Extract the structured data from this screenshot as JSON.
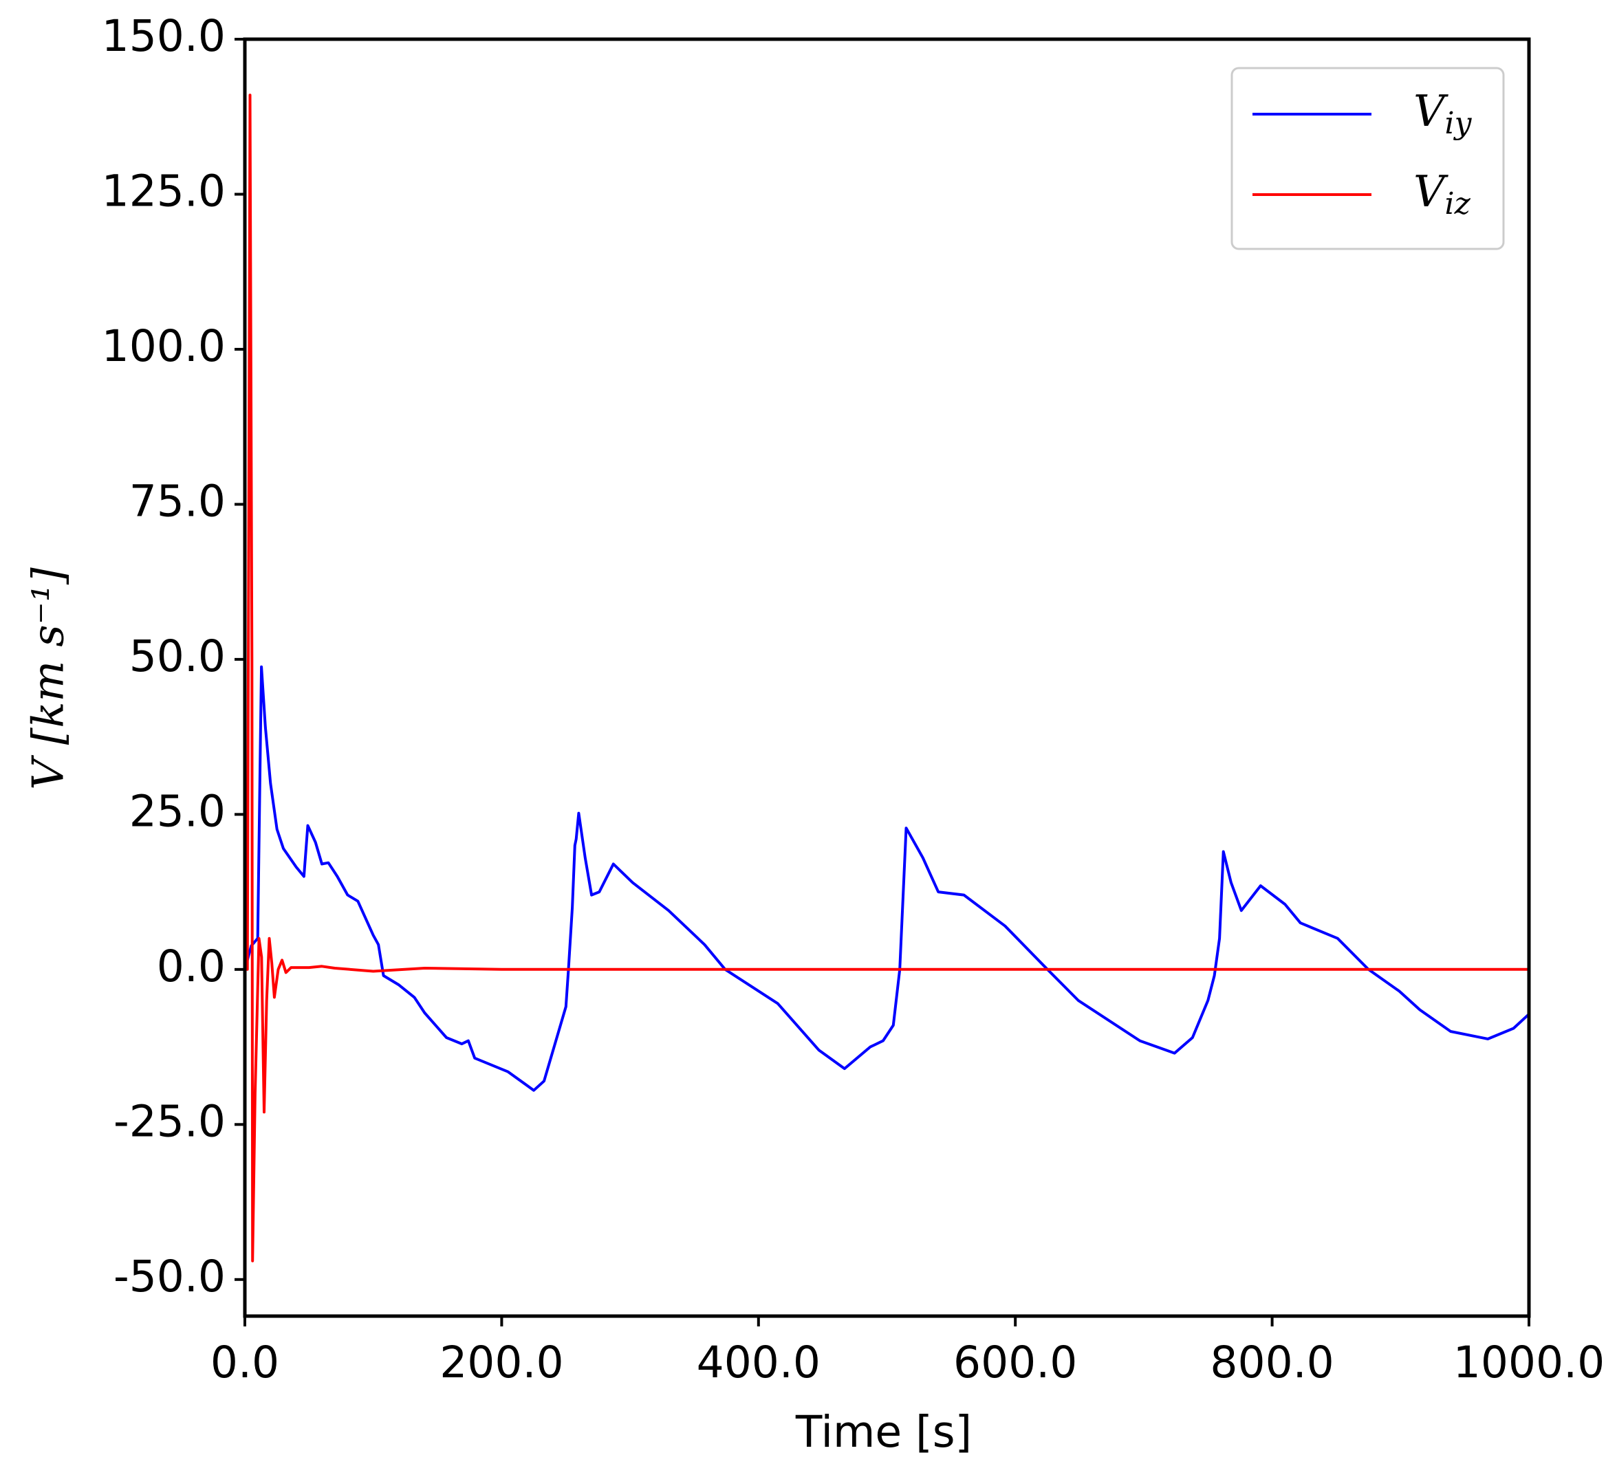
{
  "chart_data": {
    "type": "line",
    "xlabel": "Time [s]",
    "ylabel": "V [km s⁻¹]",
    "xlim": [
      0,
      1000
    ],
    "ylim": [
      -55.9,
      150
    ],
    "xticks": [
      {
        "value": 0,
        "label": "0.0"
      },
      {
        "value": 200,
        "label": "200.0"
      },
      {
        "value": 400,
        "label": "400.0"
      },
      {
        "value": 600,
        "label": "600.0"
      },
      {
        "value": 800,
        "label": "800.0"
      },
      {
        "value": 1000,
        "label": "1000.0"
      }
    ],
    "yticks": [
      {
        "value": -50,
        "label": "-50.0"
      },
      {
        "value": -25,
        "label": "-25.0"
      },
      {
        "value": 0,
        "label": "0.0"
      },
      {
        "value": 25,
        "label": "25.0"
      },
      {
        "value": 50,
        "label": "50.0"
      },
      {
        "value": 75,
        "label": "75.0"
      },
      {
        "value": 100,
        "label": "100.0"
      },
      {
        "value": 125,
        "label": "125.0"
      },
      {
        "value": 150,
        "label": "150.0"
      }
    ],
    "legend": "upper right",
    "series": [
      {
        "name": "Viy",
        "color": "#0000ff",
        "x": [
          0,
          5,
          10,
          12.9,
          16,
          20,
          25,
          30,
          40,
          46,
          49,
          55,
          60,
          65,
          72,
          80,
          88,
          100,
          104,
          108,
          120,
          132,
          140,
          157,
          169,
          174,
          179,
          205,
          225,
          233,
          250,
          252,
          255,
          257,
          258,
          260,
          265,
          270,
          276,
          287,
          302,
          330,
          358,
          374,
          415,
          447,
          467,
          487,
          497,
          505,
          510,
          515,
          528,
          540,
          560,
          592,
          625,
          649,
          697,
          724,
          738,
          750,
          755,
          759,
          762,
          768,
          776,
          791,
          810,
          822,
          851,
          875,
          899,
          915,
          939,
          968,
          988,
          1000
        ],
        "values": [
          0,
          3.8,
          5,
          48.8,
          39,
          30,
          22.6,
          19.5,
          16.5,
          15,
          23.2,
          20.5,
          17,
          17.2,
          15,
          12,
          11,
          5.5,
          4,
          -1,
          -2.5,
          -4.5,
          -7,
          -11,
          -12,
          -11.5,
          -14.3,
          -16.5,
          -19.5,
          -18,
          -6,
          0,
          10,
          20,
          21,
          25.2,
          18,
          12,
          12.5,
          17,
          14,
          9.5,
          4,
          0,
          -5.5,
          -13,
          -16,
          -12.5,
          -11.5,
          -9,
          0,
          22.8,
          18,
          12.5,
          12,
          7,
          0,
          -5,
          -11.5,
          -13.5,
          -11,
          -5,
          -1,
          5,
          19,
          14,
          9.5,
          13.5,
          10.5,
          7.5,
          5,
          0,
          -3.5,
          -6.5,
          -10,
          -11.2,
          -9.5,
          -7.2
        ]
      },
      {
        "name": "Viz",
        "color": "#ff0000",
        "x": [
          0,
          2,
          4,
          5.5,
          6,
          8,
          11,
          13,
          15,
          17,
          19,
          21,
          23,
          26,
          29,
          32,
          36,
          50,
          60,
          70,
          100,
          140,
          200,
          1000
        ],
        "values": [
          0,
          0,
          141,
          50,
          -47,
          -20,
          5,
          2,
          -23,
          -5,
          5,
          1,
          -4.5,
          0,
          1.5,
          -0.5,
          0.3,
          0.3,
          0.5,
          0.2,
          -0.3,
          0.2,
          0,
          0
        ]
      }
    ]
  }
}
